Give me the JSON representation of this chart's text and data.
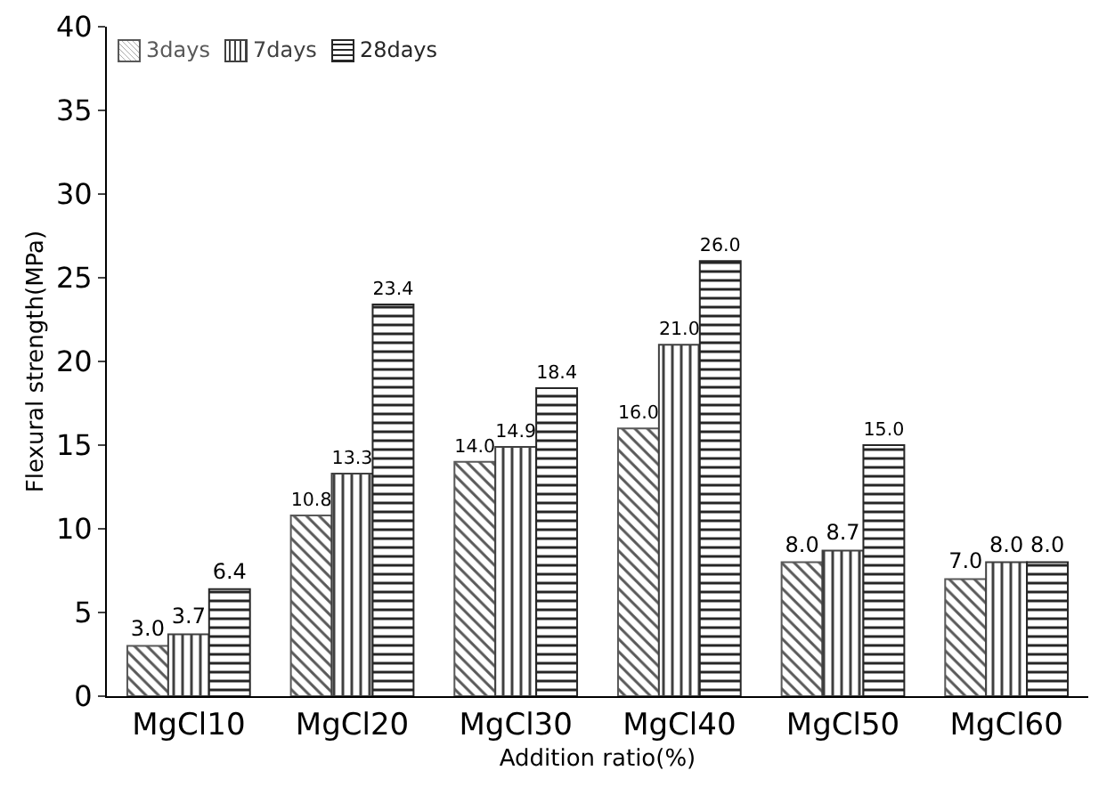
{
  "chart_data": {
    "type": "bar",
    "xlabel": "Addition ratio(%)",
    "ylabel": "Flexural strength(MPa)",
    "categories": [
      "MgCl10",
      "MgCl20",
      "MgCl30",
      "MgCl40",
      "MgCl50",
      "MgCl60"
    ],
    "series": [
      {
        "name": "3days",
        "color": "#595959",
        "values": [
          3.0,
          10.8,
          14.0,
          16.0,
          8.0,
          7.0
        ],
        "value_labels": [
          "3.0",
          "10.8",
          "14.0",
          "16.0",
          "8.0",
          "7.0"
        ]
      },
      {
        "name": "7days",
        "color": "#404040",
        "values": [
          3.7,
          13.3,
          14.9,
          21.0,
          8.7,
          8.0
        ],
        "value_labels": [
          "3.7",
          "13.3",
          "14.9",
          "21.0",
          "8.7",
          "8.0"
        ]
      },
      {
        "name": "28days",
        "color": "#262626",
        "values": [
          6.4,
          23.4,
          18.4,
          26.0,
          15.0,
          8.0
        ],
        "value_labels": [
          "6.4",
          "23.4",
          "18.4",
          "26.0",
          "15.0",
          "8.0"
        ]
      }
    ],
    "ylim": [
      0,
      40
    ],
    "yticks": [
      0,
      5,
      10,
      15,
      20,
      25,
      30,
      35,
      40
    ],
    "grid": false,
    "legend": "top left"
  }
}
